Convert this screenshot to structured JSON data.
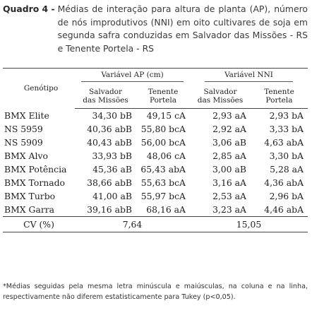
{
  "caption": {
    "label": "Quadro 4 -",
    "text": "Médias de interação para altura de planta (AP), número de nós improdutivos (NNI) em oito cultivares de soja em segunda safra conduzidas em Salvador das Missões - RS e Tenente Portela - RS"
  },
  "table": {
    "genotype_header": "Genótipo",
    "group_ap": "Variável AP (cm)",
    "group_nni": "Variável NNI",
    "sub_salvador_line1": "Salvador",
    "sub_salvador_line2": "das Missões",
    "sub_tenente_line1": "Tenente",
    "sub_tenente_line2": "Portela",
    "rows": [
      {
        "genotype": "BMX Elite",
        "ap_salvador": "34,30 bB",
        "ap_tenente": "49,15 cA",
        "nni_salvador": "2,93 aA",
        "nni_tenente": "2,93 bA"
      },
      {
        "genotype": "NS 5959",
        "ap_salvador": "40,36 abB",
        "ap_tenente": "55,80 bcA",
        "nni_salvador": "2,92 aA",
        "nni_tenente": "3,33 bA"
      },
      {
        "genotype": "NS 5909",
        "ap_salvador": "40,43 abB",
        "ap_tenente": "56,00 bcA",
        "nni_salvador": "3,06 aB",
        "nni_tenente": "4,63 abA"
      },
      {
        "genotype": "BMX Alvo",
        "ap_salvador": "33,93 bB",
        "ap_tenente": "48,06 cA",
        "nni_salvador": "2,85 aA",
        "nni_tenente": "3,30 bA"
      },
      {
        "genotype": "BMX Potência",
        "ap_salvador": "45,36 aB",
        "ap_tenente": "65,43 abA",
        "nni_salvador": "3,00 aB",
        "nni_tenente": "5,28 aA"
      },
      {
        "genotype": "BMX Tornado",
        "ap_salvador": "38,66 abB",
        "ap_tenente": "55,63 bcA",
        "nni_salvador": "3,16 aA",
        "nni_tenente": "4,36 abA"
      },
      {
        "genotype": "BMX Turbo",
        "ap_salvador": "41,00 aB",
        "ap_tenente": "55,97 bcA",
        "nni_salvador": "2,53 aA",
        "nni_tenente": "2,96 bA"
      },
      {
        "genotype": "BMX Garra",
        "ap_salvador": "39,16 abB",
        "ap_tenente": "68,16 aA",
        "nni_salvador": "3,23 aA",
        "nni_tenente": "4,46 abA"
      }
    ],
    "cv_label": "CV (%)",
    "cv_ap": "7,64",
    "cv_nni": "15,05"
  },
  "footnote": "*Médias seguidas pela mesma letra minúscula e maiúsculas, na coluna e na linha, respectivamente não diferem estatisticamente para Tukey (p<0,05)."
}
